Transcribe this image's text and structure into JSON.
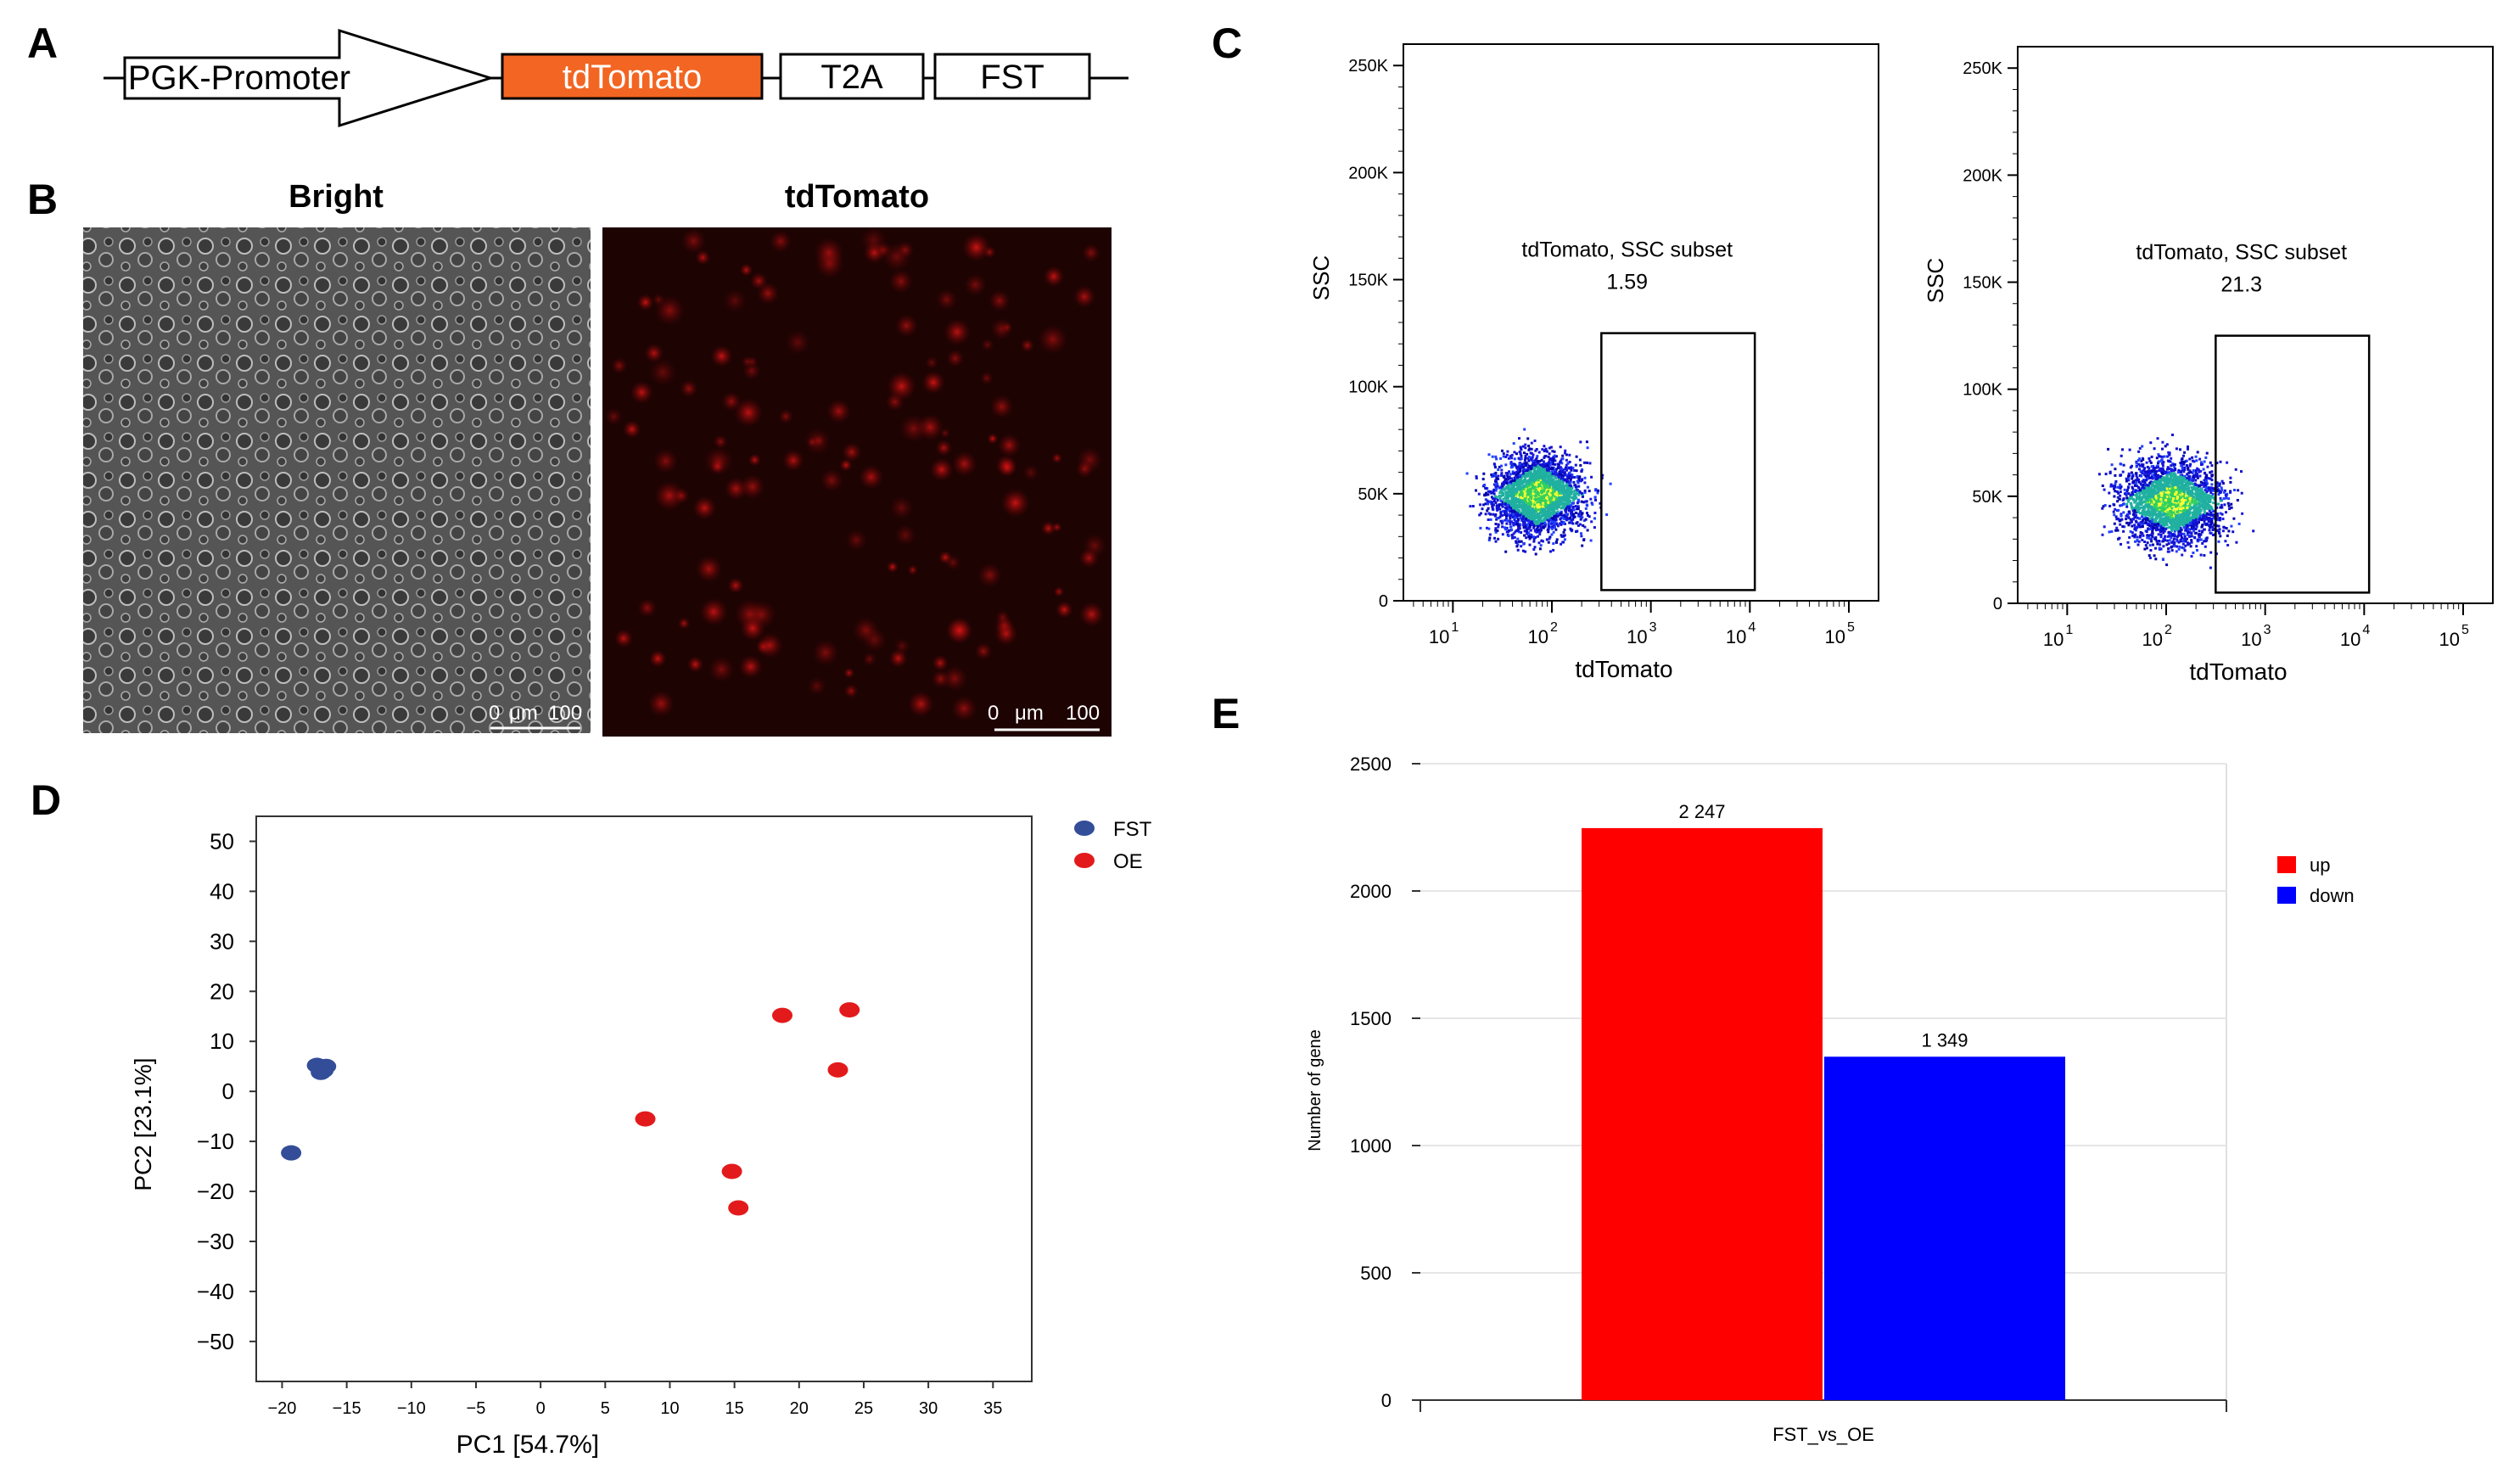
{
  "panel_labels": {
    "a": "A",
    "b": "B",
    "c": "C",
    "d": "D",
    "e": "E"
  },
  "construct": {
    "promoter": "PGK-Promoter",
    "reporter": "tdTomato",
    "linker": "T2A",
    "gene": "FST",
    "colors": {
      "reporter": "#f26522",
      "border": "#000000"
    }
  },
  "microscopy": {
    "bright_title": "Bright",
    "tomato_title": "tdTomato",
    "scale_zero": "0",
    "scale_unit": "μm",
    "scale_value": "100"
  },
  "chart_data": [
    {
      "id": "flow-left",
      "type": "scatter",
      "title": "",
      "xlabel": "tdTomato",
      "ylabel": "SSC",
      "x_scale": "log",
      "xlim_log10": [
        0.5,
        5.3
      ],
      "ylim": [
        0,
        260000
      ],
      "yticks": [
        0,
        50000,
        100000,
        150000,
        200000,
        250000
      ],
      "ytick_labels": [
        "0",
        "50K",
        "100K",
        "150K",
        "200K",
        "250K"
      ],
      "xtick_exponents": [
        1,
        2,
        3,
        4,
        5
      ],
      "xtick_base": "10",
      "gate": {
        "name": "tdTomato, SSC subset",
        "value": "1.59",
        "x_log10": [
          2.5,
          4.05
        ],
        "y": [
          5000,
          125000
        ]
      },
      "cloud": {
        "center_log10": 1.85,
        "spread_log10": 0.7,
        "center_y": 50000,
        "spread_y": 22000,
        "gated_fraction": 0.0159
      }
    },
    {
      "id": "flow-right",
      "type": "scatter",
      "title": "",
      "xlabel": "tdTomato",
      "ylabel": "SSC",
      "x_scale": "log",
      "xlim_log10": [
        0.5,
        5.3
      ],
      "ylim": [
        0,
        260000
      ],
      "yticks": [
        0,
        50000,
        100000,
        150000,
        200000,
        250000
      ],
      "ytick_labels": [
        "0",
        "50K",
        "100K",
        "150K",
        "200K",
        "250K"
      ],
      "xtick_exponents": [
        1,
        2,
        3,
        4,
        5
      ],
      "xtick_base": "10",
      "gate": {
        "name": "tdTomato, SSC subset",
        "value": "21.3",
        "x_log10": [
          2.5,
          4.05
        ],
        "y": [
          5000,
          125000
        ]
      },
      "cloud": {
        "center_log10": 2.05,
        "spread_log10": 0.8,
        "center_y": 48000,
        "spread_y": 22000,
        "gated_fraction": 0.213
      }
    },
    {
      "id": "pca",
      "type": "scatter",
      "title": "",
      "xlabel": "PC1 [54.7%]",
      "ylabel": "PC2 [23.1%]",
      "xlim": [
        -22,
        38
      ],
      "ylim": [
        -58,
        55
      ],
      "xticks": [
        -20,
        -15,
        -10,
        -5,
        0,
        5,
        10,
        15,
        20,
        25,
        30,
        35
      ],
      "yticks": [
        50,
        40,
        30,
        20,
        10,
        0,
        -10,
        -20,
        -30,
        -40,
        -50
      ],
      "legend_position": "top-right",
      "series": [
        {
          "name": "FST",
          "color": "#334d99",
          "points": [
            [
              -17.3,
              5.2
            ],
            [
              -16.6,
              5.0
            ],
            [
              -17.0,
              3.8
            ],
            [
              -16.8,
              4.2
            ],
            [
              -19.3,
              -12.3
            ]
          ]
        },
        {
          "name": "OE",
          "color": "#e31a1c",
          "points": [
            [
              8.1,
              -5.5
            ],
            [
              14.8,
              -16.0
            ],
            [
              15.3,
              -23.3
            ],
            [
              18.7,
              15.2
            ],
            [
              23.0,
              4.3
            ],
            [
              23.9,
              16.3
            ]
          ]
        }
      ]
    },
    {
      "id": "deg-bars",
      "type": "bar",
      "title": "",
      "xlabel": "FST_vs_OE",
      "ylabel": "Number of gene",
      "categories": [
        "FST_vs_OE"
      ],
      "ylim": [
        0,
        2500
      ],
      "yticks": [
        0,
        500,
        1000,
        1500,
        2000,
        2500
      ],
      "legend_position": "top-right",
      "series": [
        {
          "name": "up",
          "values": [
            2247
          ],
          "label": "2 247",
          "color": "#ff0000"
        },
        {
          "name": "down",
          "values": [
            1349
          ],
          "label": "1 349",
          "color": "#0000ff"
        }
      ]
    }
  ]
}
